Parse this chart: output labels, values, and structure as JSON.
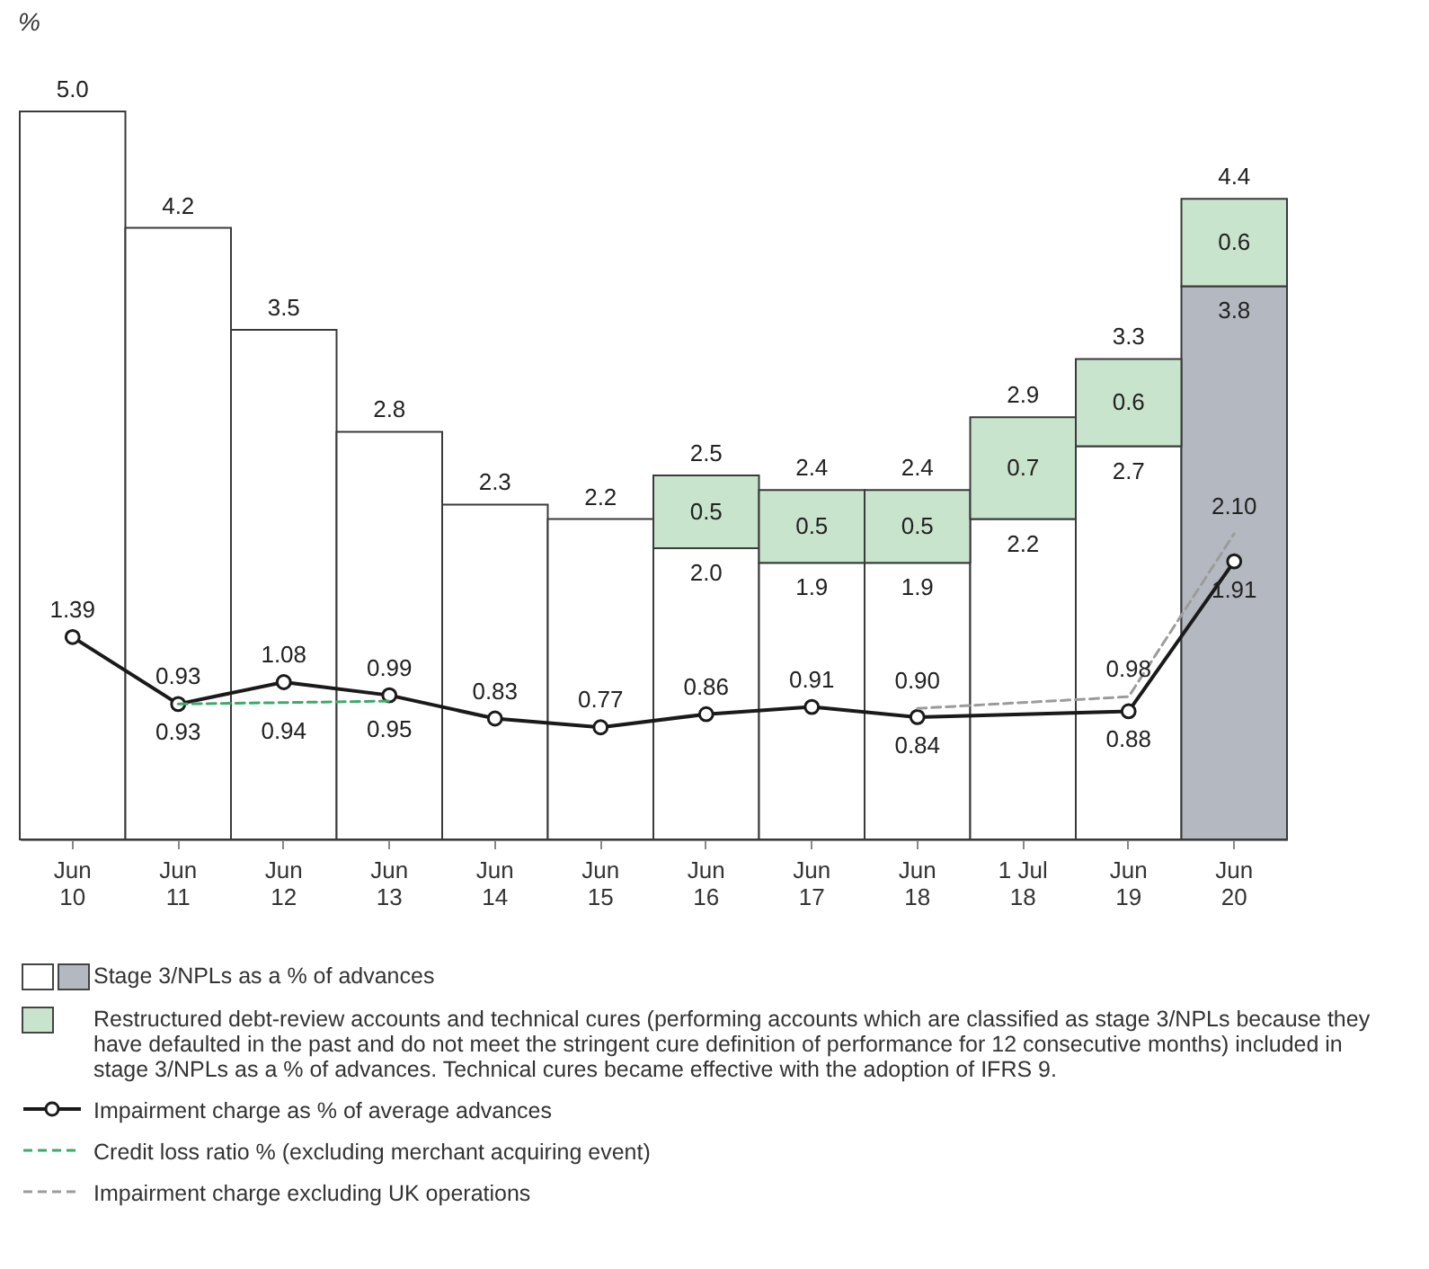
{
  "chart_data": {
    "type": "bar",
    "stacked": true,
    "ylabel": "%",
    "categories": [
      "Jun 10",
      "Jun 11",
      "Jun 12",
      "Jun 13",
      "Jun 14",
      "Jun 15",
      "Jun 16",
      "Jun 17",
      "Jun 18",
      "1 Jul 18",
      "Jun 19",
      "Jun 20"
    ],
    "series": [
      {
        "name": "Stage 3/NPLs as a % of advances",
        "colors": [
          "#ffffff",
          "#ffffff",
          "#ffffff",
          "#ffffff",
          "#ffffff",
          "#ffffff",
          "#ffffff",
          "#ffffff",
          "#ffffff",
          "#ffffff",
          "#ffffff",
          "#b4b9c1"
        ],
        "values": [
          5.0,
          4.2,
          3.5,
          2.8,
          2.3,
          2.2,
          2.0,
          1.9,
          1.9,
          2.2,
          2.7,
          3.8
        ],
        "value_labels": [
          null,
          null,
          null,
          null,
          null,
          null,
          "2.0",
          "1.9",
          "1.9",
          "2.2",
          "2.7",
          "3.8"
        ]
      },
      {
        "name": "Restructured debt-review accounts and technical cures (performing accounts which are classified as stage 3/NPLs because they have defaulted in the past and do not meet the stringent cure definition of performance for 12 consecutive months) included in stage 3/NPLs as a % of advances. Technical cures became effective with the adoption of IFRS 9.",
        "color": "#c9e4cd",
        "values": [
          null,
          null,
          null,
          null,
          null,
          null,
          0.5,
          0.5,
          0.5,
          0.7,
          0.6,
          0.6
        ],
        "value_labels": [
          null,
          null,
          null,
          null,
          null,
          null,
          "0.5",
          "0.5",
          "0.5",
          "0.7",
          "0.6",
          "0.6"
        ]
      },
      {
        "name": "Impairment charge as % of average advances",
        "type": "line",
        "color": "#1a1a1a",
        "marker": "circle",
        "line_style": "solid",
        "values": [
          1.39,
          0.93,
          1.08,
          0.99,
          0.83,
          0.77,
          0.86,
          0.91,
          0.84,
          null,
          0.88,
          1.91
        ],
        "value_labels": [
          "1.39",
          "0.93",
          "1.08",
          "0.99",
          "0.83",
          "0.77",
          "0.86",
          "0.91",
          "0.84",
          null,
          "0.88",
          "1.91"
        ]
      },
      {
        "name": "Credit loss ratio % (excluding merchant acquiring event)",
        "type": "line",
        "color": "#3daa6a",
        "marker": "none",
        "line_style": "dashed",
        "values": [
          null,
          0.93,
          0.94,
          0.95,
          null,
          null,
          null,
          null,
          null,
          null,
          null,
          null
        ],
        "value_labels": [
          null,
          "0.93",
          "0.94",
          "0.95",
          null,
          null,
          null,
          null,
          null,
          null,
          null,
          null
        ]
      },
      {
        "name": "Impairment charge excluding UK operations",
        "type": "line",
        "color": "#9b9b9b",
        "marker": "none",
        "line_style": "dashed",
        "values": [
          null,
          null,
          null,
          null,
          null,
          null,
          null,
          null,
          0.9,
          null,
          0.98,
          2.1
        ],
        "value_labels": [
          null,
          null,
          null,
          null,
          null,
          null,
          null,
          null,
          "0.90",
          null,
          "0.98",
          "2.10"
        ]
      }
    ],
    "totals": [
      "5.0",
      "4.2",
      "3.5",
      "2.8",
      "2.3",
      "2.2",
      "2.5",
      "2.4",
      "2.4",
      "2.9",
      "3.3",
      "4.4"
    ],
    "tick_labels": "x",
    "legend": "bottom"
  }
}
